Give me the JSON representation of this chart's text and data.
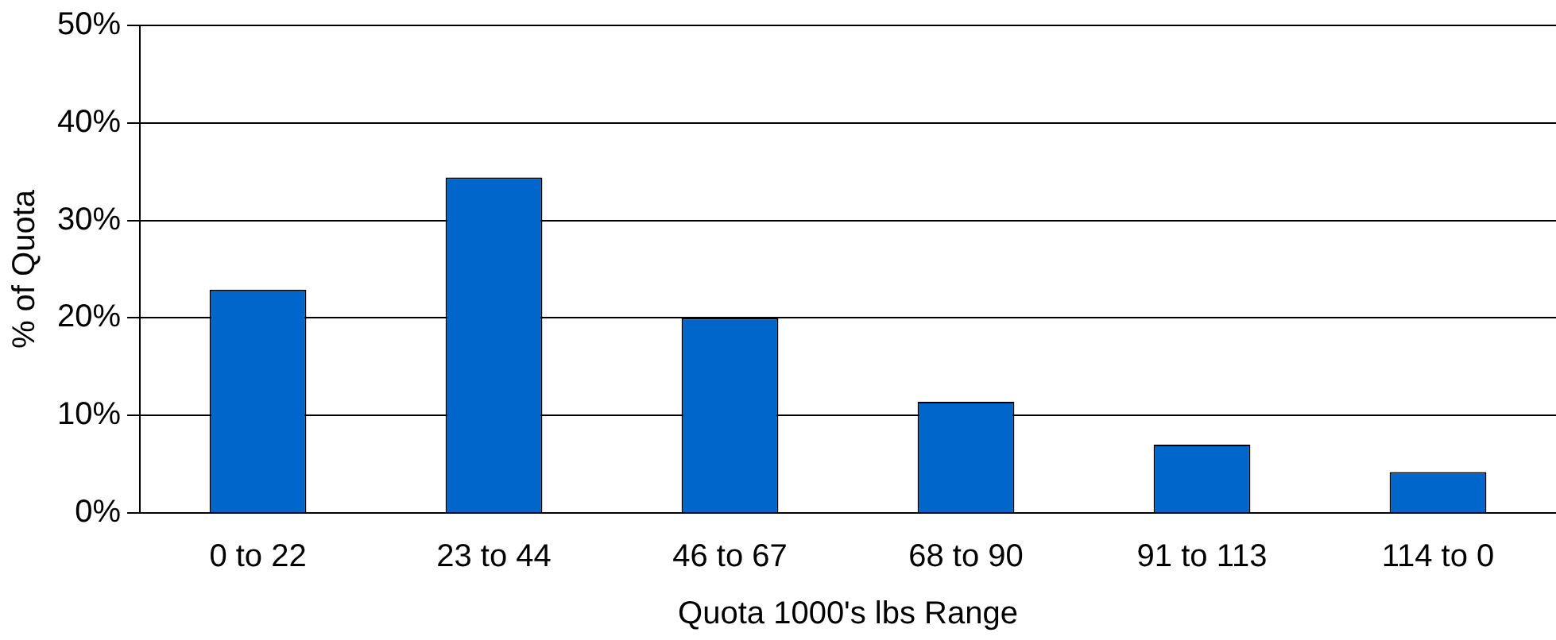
{
  "chart_data": {
    "type": "bar",
    "xlabel": "Quota 1000's lbs Range",
    "ylabel": "% of Quota",
    "categories": [
      "0 to 22",
      "23 to 44",
      "46 to 67",
      "68 to 90",
      "91 to 113",
      "114 to 0"
    ],
    "values": [
      22.9,
      34.4,
      20.0,
      11.4,
      7.0,
      4.2
    ],
    "color": "#0066cc",
    "ylim": [
      0,
      50
    ],
    "yticks": [
      {
        "value": 0,
        "label": "0%"
      },
      {
        "value": 10,
        "label": "10%"
      },
      {
        "value": 20,
        "label": "20%"
      },
      {
        "value": 30,
        "label": "30%"
      },
      {
        "value": 40,
        "label": "40%"
      },
      {
        "value": 50,
        "label": "50%"
      }
    ],
    "grid": "y",
    "legend": false
  }
}
